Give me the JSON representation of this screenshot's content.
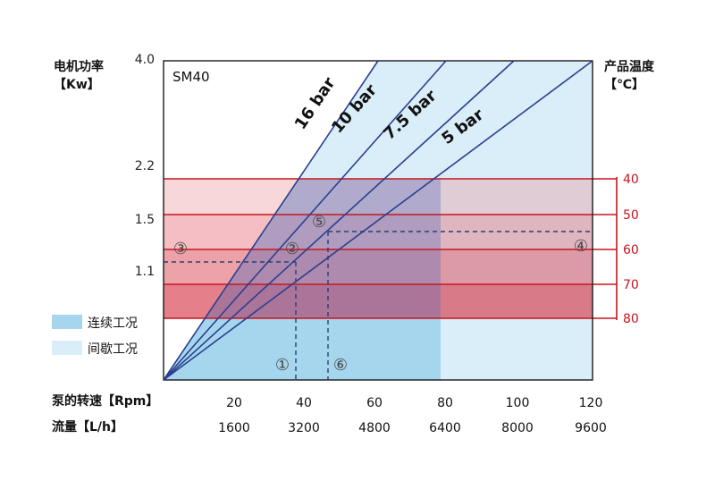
{
  "chart_data": {
    "type": "line",
    "title": "SM40",
    "y_left_title": [
      "电机功率",
      "【Kw】"
    ],
    "y_right_title": [
      "产品温度",
      "【℃】"
    ],
    "y_left_ticks": [
      "4.0",
      "2.2",
      "1.5",
      "1.1"
    ],
    "y_left_values": [
      4.0,
      2.2,
      1.5,
      1.1
    ],
    "y_right_ticks": [
      "40",
      "50",
      "60",
      "70",
      "80"
    ],
    "x_row1_label": "泵的转速【Rpm】",
    "x_row1_ticks": [
      "20",
      "40",
      "60",
      "80",
      "100",
      "120"
    ],
    "x_row2_label": "流量【L/h】",
    "x_row2_ticks": [
      "1600",
      "3200",
      "4800",
      "6400",
      "8000",
      "9600"
    ],
    "xlim": [
      0,
      120
    ],
    "pressure_lines": [
      {
        "name": "16 bar",
        "x_at_top": 60
      },
      {
        "name": "10 bar",
        "x_at_top": 79
      },
      {
        "name": "7.5 bar",
        "x_at_top": 98
      },
      {
        "name": "5 bar",
        "x_at_top": 120
      }
    ],
    "temperature_bands": [
      "40",
      "50",
      "60",
      "70",
      "80"
    ],
    "markers": [
      "①",
      "②",
      "③",
      "④",
      "⑤",
      "⑥"
    ],
    "example_rpm": [
      37,
      46
    ],
    "legend": [
      {
        "label": "连续工况",
        "color": "#a6d6ee"
      },
      {
        "label": "间歇工况",
        "color": "#d9eef8"
      }
    ]
  }
}
